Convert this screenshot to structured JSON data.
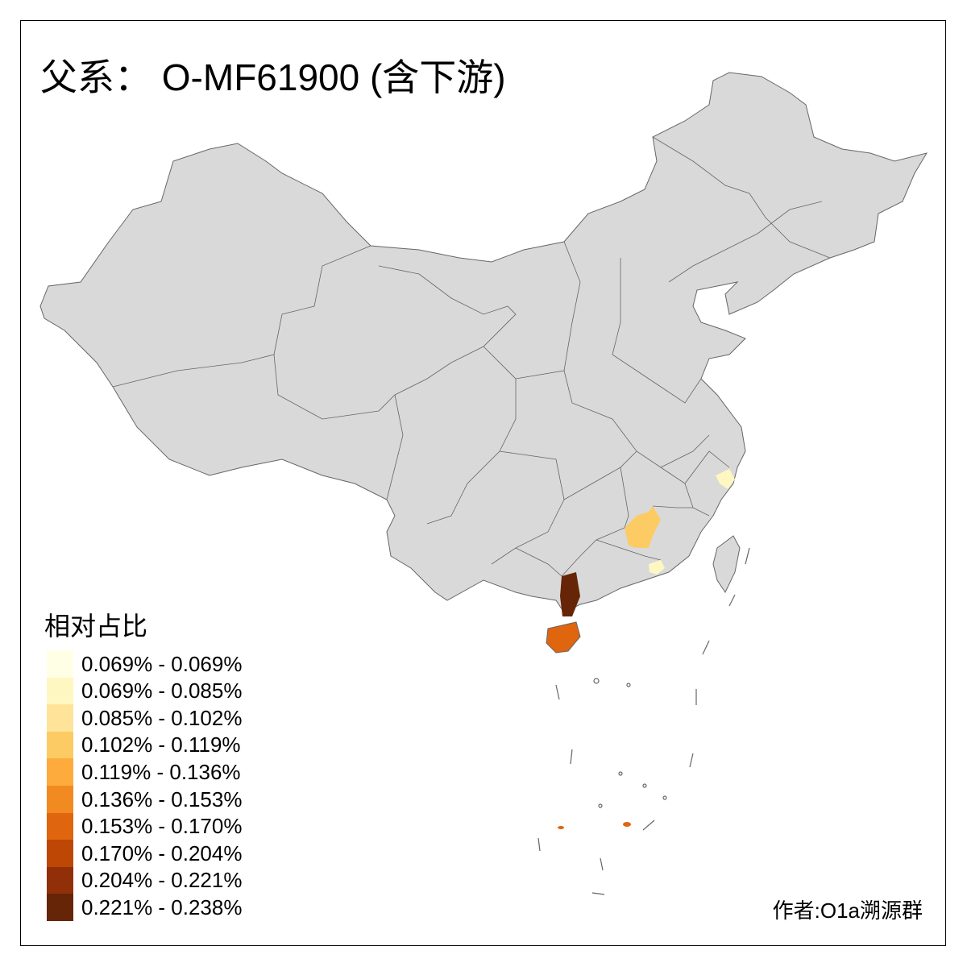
{
  "title": "父系： O-MF61900 (含下游)",
  "author": "作者:O1a溯源群",
  "chart_data": {
    "type": "choropleth",
    "legend": {
      "title": "相对占比",
      "placement": "bottom-left",
      "classes": [
        {
          "label": "0.069% - 0.069%",
          "color": "#FFFFE5"
        },
        {
          "label": "0.069% - 0.085%",
          "color": "#FFF7C2"
        },
        {
          "label": "0.085% - 0.102%",
          "color": "#FEE398"
        },
        {
          "label": "0.102% - 0.119%",
          "color": "#FDCB64"
        },
        {
          "label": "0.119% - 0.136%",
          "color": "#FDAB3C"
        },
        {
          "label": "0.136% - 0.153%",
          "color": "#F28A22"
        },
        {
          "label": "0.153% - 0.170%",
          "color": "#DF650F"
        },
        {
          "label": "0.170% - 0.204%",
          "color": "#BE4706"
        },
        {
          "label": "0.204% - 0.221%",
          "color": "#912F08"
        },
        {
          "label": "0.221% - 0.238%",
          "color": "#662506"
        }
      ]
    },
    "base_color": "#D9D9D9",
    "border_color": "#666666"
  }
}
